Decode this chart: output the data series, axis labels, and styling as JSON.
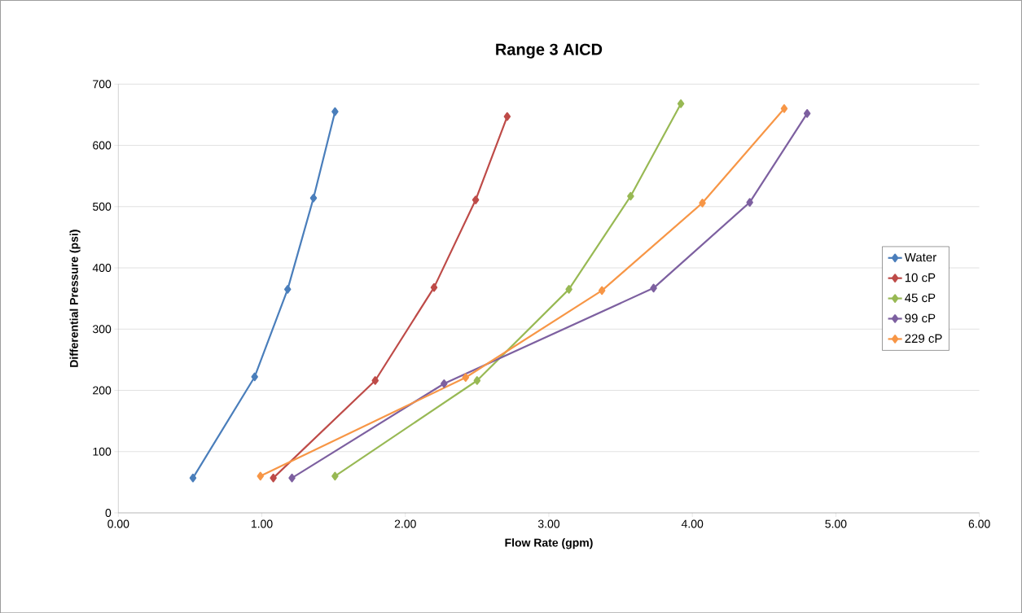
{
  "chart_data": {
    "type": "line",
    "title": "Range 3 AICD",
    "xlabel": "Flow Rate (gpm)",
    "ylabel": "Differential Pressure (psi)",
    "xlim": [
      0,
      6
    ],
    "ylim": [
      0,
      700
    ],
    "xticks": [
      {
        "value": 0,
        "label": "0.00"
      },
      {
        "value": 1,
        "label": "1.00"
      },
      {
        "value": 2,
        "label": "2.00"
      },
      {
        "value": 3,
        "label": "3.00"
      },
      {
        "value": 4,
        "label": "4.00"
      },
      {
        "value": 5,
        "label": "5.00"
      },
      {
        "value": 6,
        "label": "6.00"
      }
    ],
    "yticks": [
      0,
      100,
      200,
      300,
      400,
      500,
      600,
      700
    ],
    "grid": "y",
    "legend": "right",
    "marker": "diamond",
    "line_style": "solid",
    "series": [
      {
        "name": "Water",
        "color": "#4a7ebb",
        "x": [
          0.52,
          0.95,
          1.18,
          1.36,
          1.51
        ],
        "values": [
          57,
          222,
          365,
          514,
          655
        ]
      },
      {
        "name": "10 cP",
        "color": "#be4b48",
        "x": [
          1.08,
          1.79,
          2.2,
          2.49,
          2.71
        ],
        "values": [
          57,
          216,
          368,
          511,
          647
        ]
      },
      {
        "name": "45 cP",
        "color": "#98b954",
        "x": [
          1.51,
          2.5,
          3.14,
          3.57,
          3.92
        ],
        "values": [
          60,
          216,
          365,
          517,
          668
        ]
      },
      {
        "name": "99 cP",
        "color": "#7d60a0",
        "x": [
          1.21,
          2.27,
          3.73,
          4.4,
          4.8
        ],
        "values": [
          57,
          211,
          367,
          507,
          652
        ]
      },
      {
        "name": "229 cP",
        "color": "#f79646",
        "x": [
          0.99,
          2.42,
          3.37,
          4.07,
          4.64
        ],
        "values": [
          60,
          221,
          363,
          506,
          660
        ]
      }
    ]
  }
}
